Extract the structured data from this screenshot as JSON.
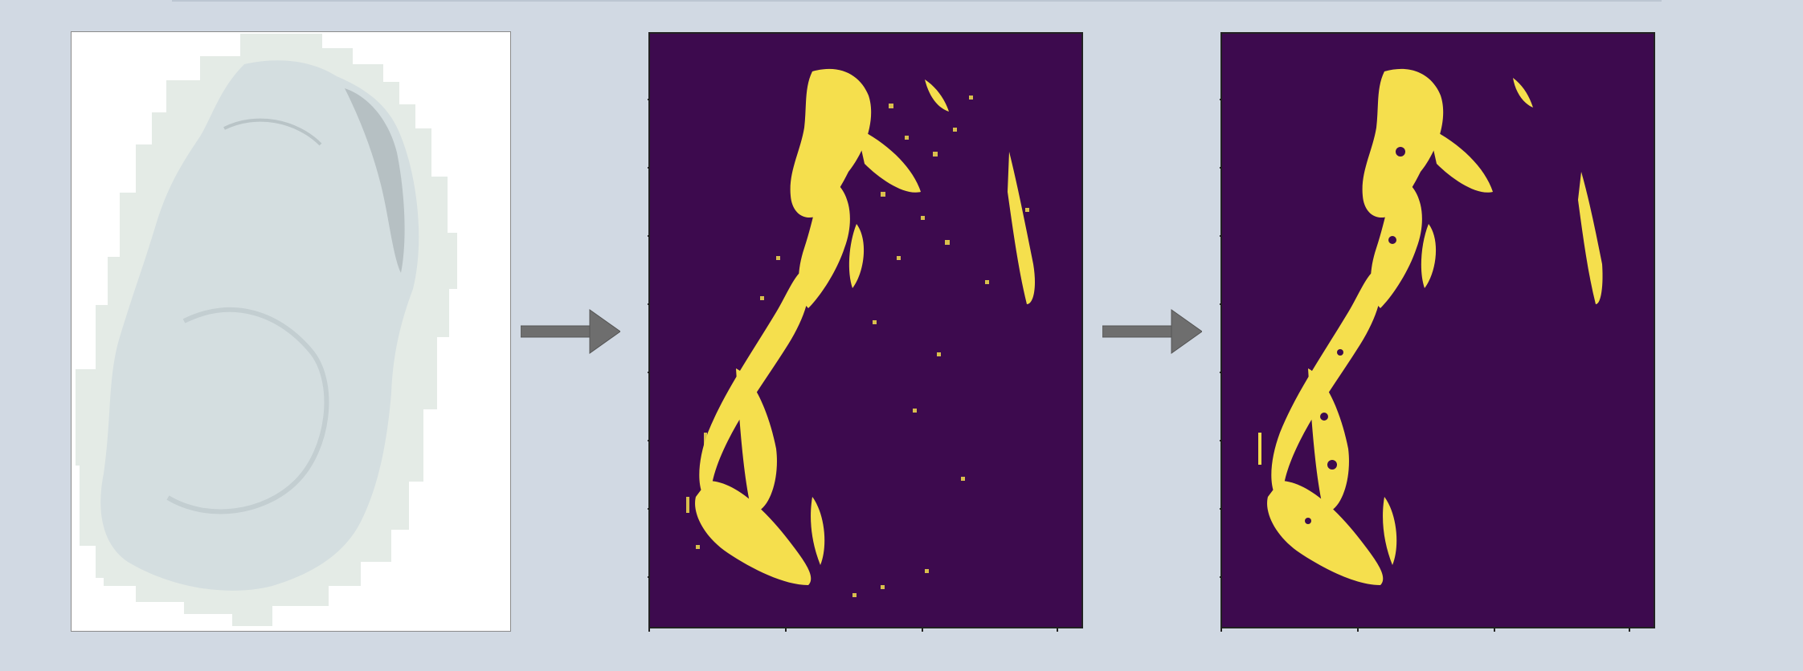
{
  "figure": {
    "description_hidden": false,
    "panels": [
      {
        "id": "tissue-scan"
      },
      {
        "id": "tissue-mask-raw"
      },
      {
        "id": "tissue-mask-cleaned"
      }
    ]
  },
  "colors": {
    "background": "#d1d9e3",
    "mask_background": "#3d0a4e",
    "mask_foreground": "#f5df4d",
    "tissue_fill": "#d6e0e2",
    "tissue_halo": "#e4ebe6",
    "arrow": "#6e6e6e"
  },
  "icons": {
    "arrow_1": "right-arrow-icon",
    "arrow_2": "right-arrow-icon"
  }
}
